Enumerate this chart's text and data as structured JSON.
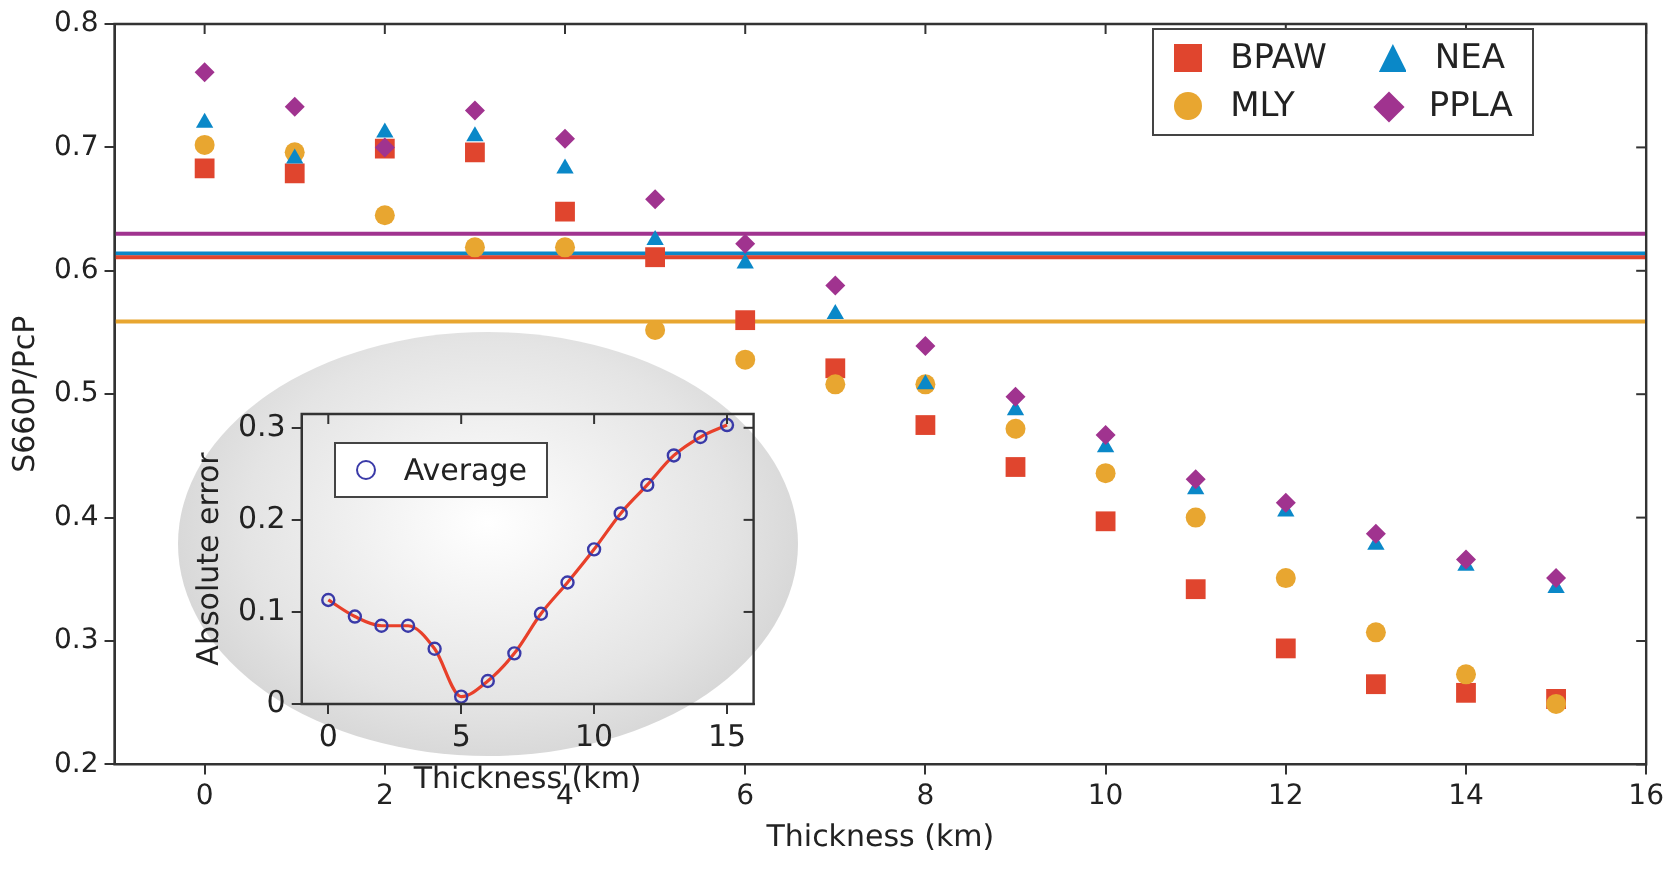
{
  "chart_data": [
    {
      "type": "scatter",
      "xlabel": "Thickness (km)",
      "ylabel": "S660P/PcP",
      "x": [
        0,
        1,
        2,
        3,
        4,
        5,
        6,
        7,
        8,
        9,
        10,
        11,
        12,
        13,
        14,
        15
      ],
      "series": [
        {
          "name": "BPAW",
          "color": "#e0452e",
          "marker": "square",
          "values": [
            0.683,
            0.679,
            0.699,
            0.696,
            0.648,
            0.611,
            0.56,
            0.521,
            0.475,
            0.441,
            0.397,
            0.342,
            0.294,
            0.265,
            0.258,
            0.253
          ]
        },
        {
          "name": "MLY",
          "color": "#e8a630",
          "marker": "circle",
          "values": [
            0.702,
            0.696,
            0.645,
            0.619,
            0.619,
            0.552,
            0.528,
            0.508,
            0.508,
            0.472,
            0.436,
            0.4,
            0.351,
            0.307,
            0.273,
            0.249
          ]
        },
        {
          "name": "NEA",
          "color": "#0a88c8",
          "marker": "triangle",
          "values": [
            0.72,
            0.691,
            0.712,
            0.709,
            0.683,
            0.625,
            0.606,
            0.565,
            0.508,
            0.487,
            0.457,
            0.423,
            0.405,
            0.378,
            0.361,
            0.343
          ]
        },
        {
          "name": "PPLA",
          "color": "#a0338f",
          "marker": "diamond",
          "values": [
            0.761,
            0.733,
            0.7,
            0.73,
            0.707,
            0.658,
            0.622,
            0.588,
            0.539,
            0.498,
            0.467,
            0.431,
            0.412,
            0.387,
            0.366,
            0.351
          ]
        }
      ],
      "ref_lines": [
        {
          "axis": "y",
          "value": 0.63,
          "color": "#a0338f"
        },
        {
          "axis": "y",
          "value": 0.614,
          "color": "#0a88c8"
        },
        {
          "axis": "y",
          "value": 0.611,
          "color": "#e0452e"
        },
        {
          "axis": "y",
          "value": 0.559,
          "color": "#e8a630"
        }
      ],
      "xlim": [
        -1,
        16
      ],
      "xticks": [
        0,
        2,
        4,
        6,
        8,
        10,
        12,
        14,
        16
      ],
      "ylim": [
        0.2,
        0.8
      ],
      "yticks": [
        0.2,
        0.3,
        0.4,
        0.5,
        0.6,
        0.7,
        0.8
      ],
      "grid": false,
      "legend": "top right"
    },
    {
      "type": "line",
      "xlabel": "Thickness (km)",
      "ylabel": "Absolute error",
      "x": [
        0,
        1,
        2,
        3,
        4,
        5,
        6,
        7,
        8,
        9,
        10,
        11,
        12,
        13,
        14,
        15
      ],
      "series": [
        {
          "color": "#e8402a",
          "marker": "none",
          "values": [
            0.113,
            0.095,
            0.085,
            0.085,
            0.06,
            0.008,
            0.025,
            0.055,
            0.098,
            0.132,
            0.168,
            0.207,
            0.238,
            0.27,
            0.29,
            0.303
          ]
        },
        {
          "type": "scatter",
          "name": "Average",
          "color": "#3a3aa8",
          "marker": "circle",
          "values": [
            0.113,
            0.095,
            0.085,
            0.085,
            0.06,
            0.008,
            0.025,
            0.055,
            0.098,
            0.132,
            0.168,
            0.207,
            0.238,
            0.27,
            0.29,
            0.303
          ]
        }
      ],
      "xlim": [
        -1,
        16
      ],
      "xticks": [
        0,
        5,
        10,
        15
      ],
      "ylim": [
        0,
        0.315
      ],
      "yticks": [
        0,
        0.1,
        0.2,
        0.3
      ],
      "grid": false,
      "legend": "top left"
    }
  ]
}
